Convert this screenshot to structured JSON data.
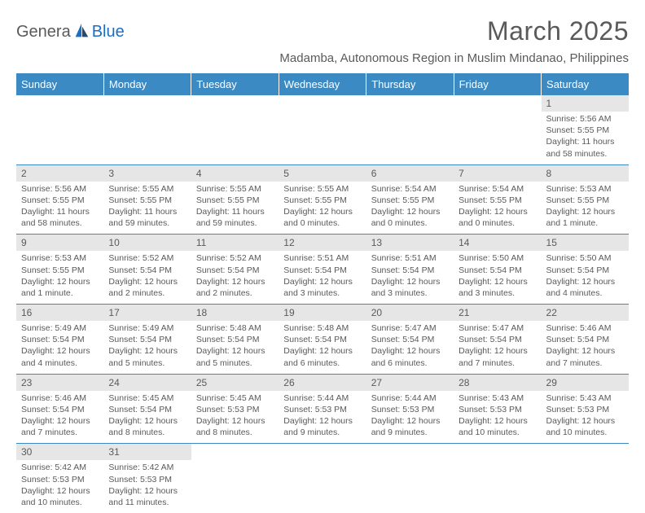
{
  "logo": {
    "part1": "Genera",
    "part2": "Blue"
  },
  "title": "March 2025",
  "location": "Madamba, Autonomous Region in Muslim Mindanao, Philippines",
  "colors": {
    "header_bg": "#3b8ac4",
    "header_text": "#ffffff",
    "daynum_bg": "#e6e6e6",
    "text": "#5a5a5a",
    "rule": "#3b8ac4",
    "logo_blue": "#1b6ec2",
    "page_bg": "#ffffff"
  },
  "typography": {
    "title_size": 32,
    "location_size": 15,
    "header_size": 13,
    "daynum_size": 12,
    "detail_size": 10.5
  },
  "weekdays": [
    "Sunday",
    "Monday",
    "Tuesday",
    "Wednesday",
    "Thursday",
    "Friday",
    "Saturday"
  ],
  "weeks": [
    [
      null,
      null,
      null,
      null,
      null,
      null,
      {
        "n": "1",
        "sr": "Sunrise: 5:56 AM",
        "ss": "Sunset: 5:55 PM",
        "d1": "Daylight: 11 hours",
        "d2": "and 58 minutes."
      }
    ],
    [
      {
        "n": "2",
        "sr": "Sunrise: 5:56 AM",
        "ss": "Sunset: 5:55 PM",
        "d1": "Daylight: 11 hours",
        "d2": "and 58 minutes."
      },
      {
        "n": "3",
        "sr": "Sunrise: 5:55 AM",
        "ss": "Sunset: 5:55 PM",
        "d1": "Daylight: 11 hours",
        "d2": "and 59 minutes."
      },
      {
        "n": "4",
        "sr": "Sunrise: 5:55 AM",
        "ss": "Sunset: 5:55 PM",
        "d1": "Daylight: 11 hours",
        "d2": "and 59 minutes."
      },
      {
        "n": "5",
        "sr": "Sunrise: 5:55 AM",
        "ss": "Sunset: 5:55 PM",
        "d1": "Daylight: 12 hours",
        "d2": "and 0 minutes."
      },
      {
        "n": "6",
        "sr": "Sunrise: 5:54 AM",
        "ss": "Sunset: 5:55 PM",
        "d1": "Daylight: 12 hours",
        "d2": "and 0 minutes."
      },
      {
        "n": "7",
        "sr": "Sunrise: 5:54 AM",
        "ss": "Sunset: 5:55 PM",
        "d1": "Daylight: 12 hours",
        "d2": "and 0 minutes."
      },
      {
        "n": "8",
        "sr": "Sunrise: 5:53 AM",
        "ss": "Sunset: 5:55 PM",
        "d1": "Daylight: 12 hours",
        "d2": "and 1 minute."
      }
    ],
    [
      {
        "n": "9",
        "sr": "Sunrise: 5:53 AM",
        "ss": "Sunset: 5:55 PM",
        "d1": "Daylight: 12 hours",
        "d2": "and 1 minute."
      },
      {
        "n": "10",
        "sr": "Sunrise: 5:52 AM",
        "ss": "Sunset: 5:54 PM",
        "d1": "Daylight: 12 hours",
        "d2": "and 2 minutes."
      },
      {
        "n": "11",
        "sr": "Sunrise: 5:52 AM",
        "ss": "Sunset: 5:54 PM",
        "d1": "Daylight: 12 hours",
        "d2": "and 2 minutes."
      },
      {
        "n": "12",
        "sr": "Sunrise: 5:51 AM",
        "ss": "Sunset: 5:54 PM",
        "d1": "Daylight: 12 hours",
        "d2": "and 3 minutes."
      },
      {
        "n": "13",
        "sr": "Sunrise: 5:51 AM",
        "ss": "Sunset: 5:54 PM",
        "d1": "Daylight: 12 hours",
        "d2": "and 3 minutes."
      },
      {
        "n": "14",
        "sr": "Sunrise: 5:50 AM",
        "ss": "Sunset: 5:54 PM",
        "d1": "Daylight: 12 hours",
        "d2": "and 3 minutes."
      },
      {
        "n": "15",
        "sr": "Sunrise: 5:50 AM",
        "ss": "Sunset: 5:54 PM",
        "d1": "Daylight: 12 hours",
        "d2": "and 4 minutes."
      }
    ],
    [
      {
        "n": "16",
        "sr": "Sunrise: 5:49 AM",
        "ss": "Sunset: 5:54 PM",
        "d1": "Daylight: 12 hours",
        "d2": "and 4 minutes."
      },
      {
        "n": "17",
        "sr": "Sunrise: 5:49 AM",
        "ss": "Sunset: 5:54 PM",
        "d1": "Daylight: 12 hours",
        "d2": "and 5 minutes."
      },
      {
        "n": "18",
        "sr": "Sunrise: 5:48 AM",
        "ss": "Sunset: 5:54 PM",
        "d1": "Daylight: 12 hours",
        "d2": "and 5 minutes."
      },
      {
        "n": "19",
        "sr": "Sunrise: 5:48 AM",
        "ss": "Sunset: 5:54 PM",
        "d1": "Daylight: 12 hours",
        "d2": "and 6 minutes."
      },
      {
        "n": "20",
        "sr": "Sunrise: 5:47 AM",
        "ss": "Sunset: 5:54 PM",
        "d1": "Daylight: 12 hours",
        "d2": "and 6 minutes."
      },
      {
        "n": "21",
        "sr": "Sunrise: 5:47 AM",
        "ss": "Sunset: 5:54 PM",
        "d1": "Daylight: 12 hours",
        "d2": "and 7 minutes."
      },
      {
        "n": "22",
        "sr": "Sunrise: 5:46 AM",
        "ss": "Sunset: 5:54 PM",
        "d1": "Daylight: 12 hours",
        "d2": "and 7 minutes."
      }
    ],
    [
      {
        "n": "23",
        "sr": "Sunrise: 5:46 AM",
        "ss": "Sunset: 5:54 PM",
        "d1": "Daylight: 12 hours",
        "d2": "and 7 minutes."
      },
      {
        "n": "24",
        "sr": "Sunrise: 5:45 AM",
        "ss": "Sunset: 5:54 PM",
        "d1": "Daylight: 12 hours",
        "d2": "and 8 minutes."
      },
      {
        "n": "25",
        "sr": "Sunrise: 5:45 AM",
        "ss": "Sunset: 5:53 PM",
        "d1": "Daylight: 12 hours",
        "d2": "and 8 minutes."
      },
      {
        "n": "26",
        "sr": "Sunrise: 5:44 AM",
        "ss": "Sunset: 5:53 PM",
        "d1": "Daylight: 12 hours",
        "d2": "and 9 minutes."
      },
      {
        "n": "27",
        "sr": "Sunrise: 5:44 AM",
        "ss": "Sunset: 5:53 PM",
        "d1": "Daylight: 12 hours",
        "d2": "and 9 minutes."
      },
      {
        "n": "28",
        "sr": "Sunrise: 5:43 AM",
        "ss": "Sunset: 5:53 PM",
        "d1": "Daylight: 12 hours",
        "d2": "and 10 minutes."
      },
      {
        "n": "29",
        "sr": "Sunrise: 5:43 AM",
        "ss": "Sunset: 5:53 PM",
        "d1": "Daylight: 12 hours",
        "d2": "and 10 minutes."
      }
    ],
    [
      {
        "n": "30",
        "sr": "Sunrise: 5:42 AM",
        "ss": "Sunset: 5:53 PM",
        "d1": "Daylight: 12 hours",
        "d2": "and 10 minutes."
      },
      {
        "n": "31",
        "sr": "Sunrise: 5:42 AM",
        "ss": "Sunset: 5:53 PM",
        "d1": "Daylight: 12 hours",
        "d2": "and 11 minutes."
      },
      null,
      null,
      null,
      null,
      null
    ]
  ]
}
